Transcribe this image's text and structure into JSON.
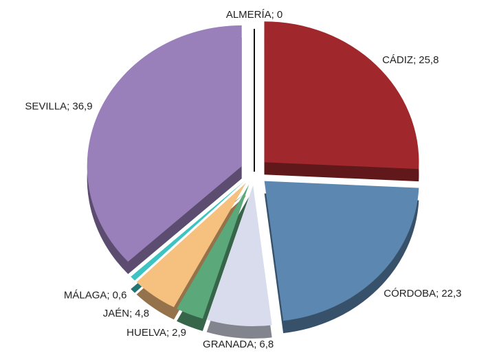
{
  "chart_data": {
    "type": "pie",
    "categories": [
      "ALMERÍA;",
      "CÁDIZ;",
      "CÓRDOBA;",
      "GRANADA;",
      "HUELVA;",
      "JAÉN;",
      "MÁLAGA;",
      "SEVILLA;"
    ],
    "values": [
      0,
      25.8,
      22.3,
      6.8,
      2.9,
      4.8,
      0.6,
      36.9
    ],
    "value_labels": [
      "0",
      "25,8",
      "22,3",
      "6,8",
      "2,9",
      "4,8",
      "0,6",
      "36,9"
    ],
    "colors": [
      "#888888",
      "#a0282c",
      "#5b87b0",
      "#d8dcec",
      "#5ba87a",
      "#f6c07f",
      "#3ec3c3",
      "#9a80ba"
    ]
  }
}
